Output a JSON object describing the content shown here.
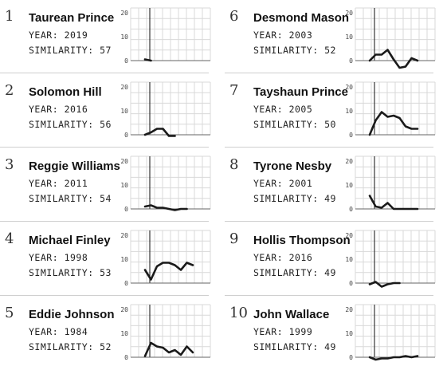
{
  "chart_data": [
    {
      "type": "line",
      "rank": "1",
      "name": "Taurean Prince",
      "year_label": "YEAR:",
      "year": "2019",
      "similarity_label": "SIMILARITY:",
      "similarity": "57",
      "yticks": [
        "20",
        "10",
        "0"
      ],
      "ylim": [
        0,
        22
      ],
      "values": [
        0.5,
        0
      ]
    },
    {
      "type": "line",
      "rank": "6",
      "name": "Desmond Mason",
      "year_label": "YEAR:",
      "year": "2003",
      "similarity_label": "SIMILARITY:",
      "similarity": "52",
      "yticks": [
        "20",
        "10",
        "0"
      ],
      "ylim": [
        0,
        22
      ],
      "values": [
        0,
        2.5,
        2.5,
        4.5,
        0.5,
        -3,
        -2.5,
        1,
        0
      ]
    },
    {
      "type": "line",
      "rank": "2",
      "name": "Solomon Hill",
      "year_label": "YEAR:",
      "year": "2016",
      "similarity_label": "SIMILARITY:",
      "similarity": "56",
      "yticks": [
        "20",
        "10",
        "0"
      ],
      "ylim": [
        0,
        22
      ],
      "values": [
        0,
        1,
        2.5,
        2.5,
        -0.5,
        -0.5
      ]
    },
    {
      "type": "line",
      "rank": "7",
      "name": "Tayshaun Prince",
      "year_label": "YEAR:",
      "year": "2005",
      "similarity_label": "SIMILARITY:",
      "similarity": "50",
      "yticks": [
        "20",
        "10",
        "0"
      ],
      "ylim": [
        0,
        22
      ],
      "values": [
        0,
        6,
        9.5,
        7.5,
        8,
        7,
        3.5,
        2.5,
        2.5
      ]
    },
    {
      "type": "line",
      "rank": "3",
      "name": "Reggie Williams",
      "year_label": "YEAR:",
      "year": "2011",
      "similarity_label": "SIMILARITY:",
      "similarity": "54",
      "yticks": [
        "20",
        "10",
        "0"
      ],
      "ylim": [
        0,
        22
      ],
      "values": [
        1,
        1.5,
        0.5,
        0.5,
        0,
        -0.5,
        0,
        0
      ]
    },
    {
      "type": "line",
      "rank": "8",
      "name": "Tyrone Nesby",
      "year_label": "YEAR:",
      "year": "2001",
      "similarity_label": "SIMILARITY:",
      "similarity": "49",
      "yticks": [
        "20",
        "10",
        "0"
      ],
      "ylim": [
        0,
        22
      ],
      "values": [
        5.5,
        1,
        0.5,
        2.5,
        0,
        0,
        0,
        0,
        0
      ]
    },
    {
      "type": "line",
      "rank": "4",
      "name": "Michael Finley",
      "year_label": "YEAR:",
      "year": "1998",
      "similarity_label": "SIMILARITY:",
      "similarity": "53",
      "yticks": [
        "20",
        "10",
        "0"
      ],
      "ylim": [
        0,
        22
      ],
      "values": [
        5.5,
        1.5,
        7,
        8.5,
        8.5,
        7.5,
        5.5,
        8.5,
        7.5
      ]
    },
    {
      "type": "line",
      "rank": "9",
      "name": "Hollis Thompson",
      "year_label": "YEAR:",
      "year": "2016",
      "similarity_label": "SIMILARITY:",
      "similarity": "49",
      "yticks": [
        "20",
        "10",
        "0"
      ],
      "ylim": [
        0,
        22
      ],
      "values": [
        -0.5,
        0.5,
        -1.5,
        -0.5,
        0,
        0
      ]
    },
    {
      "type": "line",
      "rank": "5",
      "name": "Eddie Johnson",
      "year_label": "YEAR:",
      "year": "1984",
      "similarity_label": "SIMILARITY:",
      "similarity": "52",
      "yticks": [
        "20",
        "10",
        "0"
      ],
      "ylim": [
        0,
        22
      ],
      "values": [
        0.5,
        6,
        4.5,
        4,
        2,
        3,
        1,
        4.5,
        2
      ]
    },
    {
      "type": "line",
      "rank": "10",
      "name": "John Wallace",
      "year_label": "YEAR:",
      "year": "1999",
      "similarity_label": "SIMILARITY:",
      "similarity": "49",
      "yticks": [
        "20",
        "10",
        "0"
      ],
      "ylim": [
        0,
        22
      ],
      "values": [
        0,
        -1,
        -0.5,
        -0.5,
        0,
        0,
        0.5,
        0,
        0.5
      ]
    }
  ]
}
